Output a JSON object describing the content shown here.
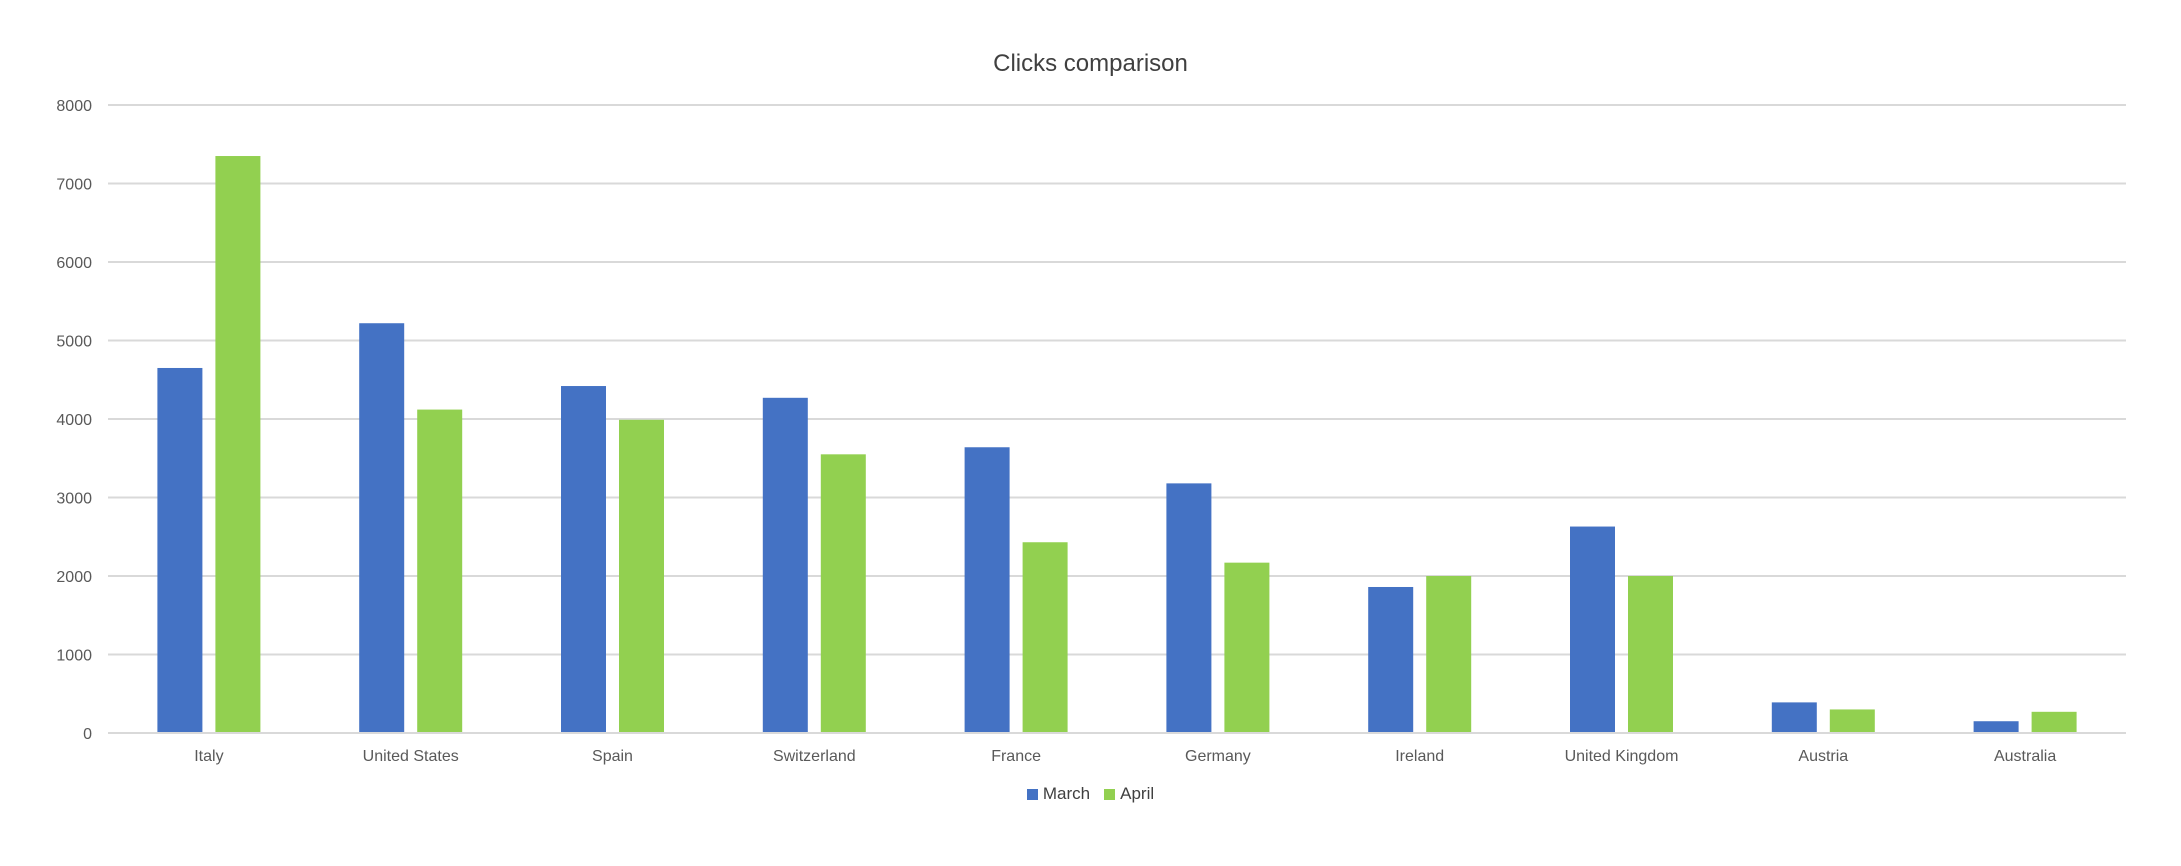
{
  "chart_data": {
    "type": "bar",
    "title": "Clicks comparison",
    "xlabel": "",
    "ylabel": "",
    "categories": [
      "Italy",
      "United States",
      "Spain",
      "Switzerland",
      "France",
      "Germany",
      "Ireland",
      "United Kingdom",
      "Austria",
      "Australia"
    ],
    "series": [
      {
        "name": "March",
        "color": "#4472C4",
        "values": [
          4650,
          5220,
          4420,
          4270,
          3640,
          3180,
          1860,
          2630,
          390,
          150
        ]
      },
      {
        "name": "April",
        "color": "#92D050",
        "values": [
          7350,
          4120,
          3990,
          3550,
          2430,
          2170,
          2000,
          2000,
          300,
          270
        ]
      }
    ],
    "ylim": [
      0,
      8000
    ],
    "yticks": [
      0,
      1000,
      2000,
      3000,
      4000,
      5000,
      6000,
      7000,
      8000
    ],
    "grid": true,
    "legend_position": "bottom"
  }
}
